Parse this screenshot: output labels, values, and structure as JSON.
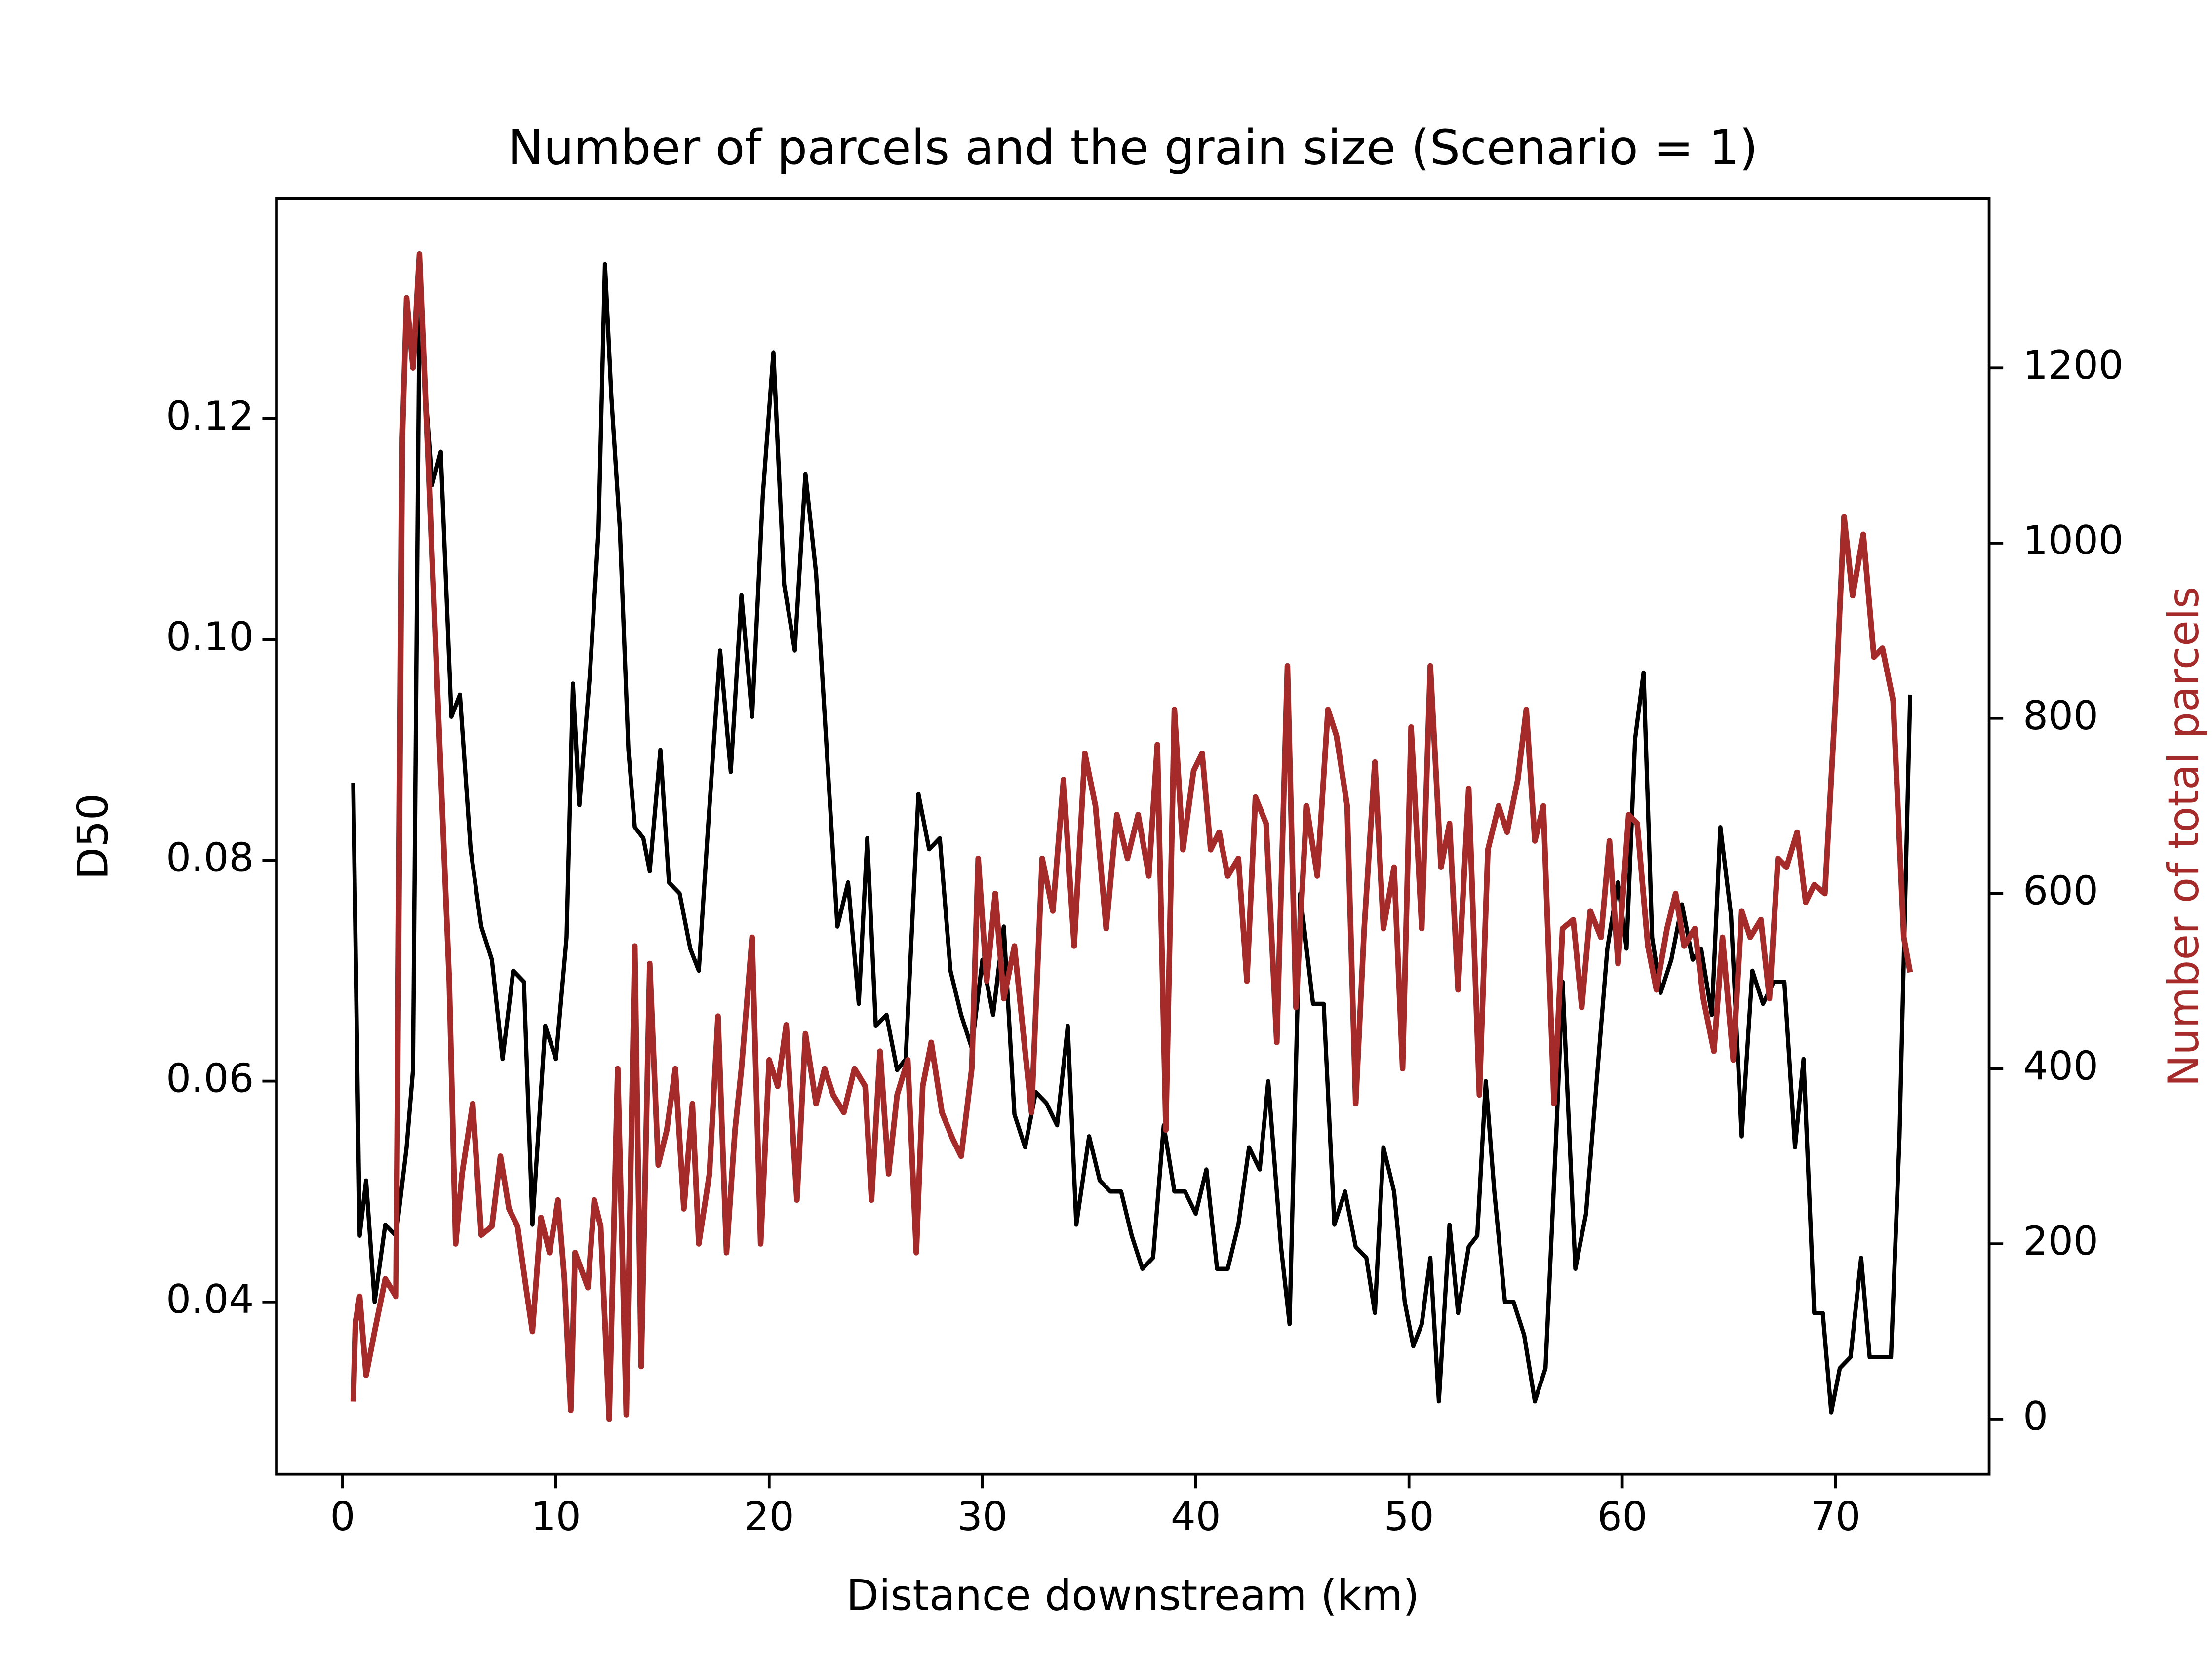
{
  "chart_data": {
    "type": "line",
    "title": "Number of parcels and the grain size (Scenario = 1)",
    "x_label": "Distance downstream (km)",
    "y_label": "D50",
    "y2_label": "Number of total parcels",
    "y2_label_color": "#a52a2a",
    "xlim": [
      -3.1,
      77.2
    ],
    "xticks": [
      0,
      10,
      20,
      30,
      40,
      50,
      60,
      70
    ],
    "ylim": [
      0.0244,
      0.1399
    ],
    "yticks": [
      0.04,
      0.06,
      0.08,
      {
        "value": 0.1,
        "label": "0.10"
      },
      0.12
    ],
    "y2lim": [
      -63,
      1393
    ],
    "y2ticks": [
      0,
      200,
      400,
      600,
      800,
      1000,
      1200
    ],
    "grid": false,
    "series": [
      {
        "color": "#000000",
        "axis": "y",
        "x": [
          0.5,
          0.8,
          1.1,
          1.5,
          2.0,
          2.5,
          3.0,
          3.3,
          3.6,
          4.2,
          4.6,
          5.1,
          5.5,
          6.0,
          6.5,
          7.0,
          7.5,
          8.0,
          8.5,
          8.9,
          9.5,
          10.0,
          10.5,
          10.8,
          11.1,
          11.6,
          12.0,
          12.3,
          12.6,
          13.0,
          13.4,
          13.7,
          14.1,
          14.4,
          14.9,
          15.3,
          15.8,
          16.3,
          16.7,
          17.1,
          17.7,
          18.2,
          18.7,
          19.2,
          19.7,
          20.2,
          20.7,
          21.2,
          21.7,
          22.2,
          22.7,
          23.2,
          23.7,
          24.2,
          24.6,
          25.0,
          25.5,
          26.0,
          26.4,
          27.0,
          27.5,
          28.0,
          28.5,
          29.0,
          29.5,
          30.0,
          30.5,
          31.0,
          31.5,
          32.0,
          32.5,
          33.0,
          33.5,
          34.0,
          34.4,
          35.0,
          35.5,
          36.0,
          36.5,
          37.0,
          37.5,
          38.0,
          38.5,
          39.0,
          39.5,
          40.0,
          40.5,
          41.0,
          41.5,
          42.0,
          42.5,
          43.0,
          43.4,
          44.0,
          44.4,
          44.9,
          45.5,
          46.0,
          46.5,
          47.0,
          47.5,
          48.0,
          48.4,
          48.8,
          49.3,
          49.8,
          50.2,
          50.6,
          51.0,
          51.4,
          51.9,
          52.3,
          52.8,
          53.2,
          53.6,
          54.0,
          54.5,
          54.9,
          55.4,
          55.9,
          56.4,
          56.9,
          57.2,
          57.8,
          58.3,
          58.8,
          59.3,
          59.8,
          60.2,
          60.6,
          61.0,
          61.4,
          61.8,
          62.3,
          62.8,
          63.3,
          63.7,
          64.2,
          64.6,
          65.1,
          65.6,
          66.1,
          66.6,
          67.1,
          67.6,
          68.1,
          68.5,
          69.0,
          69.4,
          69.8,
          70.2,
          70.7,
          71.2,
          71.6,
          72.1,
          72.6,
          73.0,
          73.5
        ],
        "values": [
          0.087,
          0.046,
          0.051,
          0.04,
          0.047,
          0.046,
          0.054,
          0.061,
          0.13,
          0.114,
          0.117,
          0.093,
          0.095,
          0.081,
          0.074,
          0.071,
          0.062,
          0.07,
          0.069,
          0.047,
          0.065,
          0.062,
          0.073,
          0.096,
          0.085,
          0.097,
          0.11,
          0.134,
          0.122,
          0.11,
          0.09,
          0.083,
          0.082,
          0.079,
          0.09,
          0.078,
          0.077,
          0.072,
          0.07,
          0.082,
          0.099,
          0.088,
          0.104,
          0.093,
          0.113,
          0.126,
          0.105,
          0.099,
          0.115,
          0.106,
          0.09,
          0.074,
          0.078,
          0.067,
          0.082,
          0.065,
          0.066,
          0.061,
          0.062,
          0.086,
          0.081,
          0.082,
          0.07,
          0.066,
          0.063,
          0.071,
          0.066,
          0.074,
          0.057,
          0.054,
          0.059,
          0.058,
          0.056,
          0.065,
          0.047,
          0.055,
          0.051,
          0.05,
          0.05,
          0.046,
          0.043,
          0.044,
          0.056,
          0.05,
          0.05,
          0.048,
          0.052,
          0.043,
          0.043,
          0.047,
          0.054,
          0.052,
          0.06,
          0.045,
          0.038,
          0.077,
          0.067,
          0.067,
          0.047,
          0.05,
          0.045,
          0.044,
          0.039,
          0.054,
          0.05,
          0.04,
          0.036,
          0.038,
          0.044,
          0.031,
          0.047,
          0.039,
          0.045,
          0.046,
          0.06,
          0.05,
          0.04,
          0.04,
          0.037,
          0.031,
          0.034,
          0.055,
          0.069,
          0.043,
          0.048,
          0.06,
          0.072,
          0.078,
          0.072,
          0.091,
          0.097,
          0.073,
          0.068,
          0.071,
          0.076,
          0.071,
          0.072,
          0.066,
          0.083,
          0.075,
          0.055,
          0.07,
          0.067,
          0.069,
          0.069,
          0.054,
          0.062,
          0.039,
          0.039,
          0.03,
          0.034,
          0.035,
          0.044,
          0.035,
          0.035,
          0.035,
          0.055,
          0.095
        ]
      },
      {
        "color": "#a52a2a",
        "axis": "y2",
        "x": [
          0.5,
          0.6,
          0.8,
          1.1,
          1.5,
          2.0,
          2.5,
          2.8,
          3.0,
          3.3,
          3.6,
          4.0,
          4.5,
          5.0,
          5.3,
          5.6,
          6.1,
          6.5,
          7.0,
          7.4,
          7.8,
          8.2,
          8.6,
          8.9,
          9.3,
          9.7,
          10.1,
          10.4,
          10.7,
          10.9,
          11.5,
          11.8,
          12.1,
          12.5,
          12.9,
          13.3,
          13.7,
          14.0,
          14.4,
          14.8,
          15.2,
          15.6,
          16.0,
          16.4,
          16.7,
          17.2,
          17.6,
          18.0,
          18.4,
          18.7,
          19.2,
          19.6,
          20.0,
          20.4,
          20.8,
          21.3,
          21.7,
          22.2,
          22.6,
          23.0,
          23.5,
          24.0,
          24.5,
          24.8,
          25.2,
          25.6,
          26.0,
          26.5,
          26.9,
          27.2,
          27.6,
          28.1,
          28.6,
          29.0,
          29.5,
          29.8,
          30.2,
          30.6,
          31.0,
          31.5,
          32.0,
          32.3,
          32.8,
          33.3,
          33.8,
          34.3,
          34.8,
          35.3,
          35.8,
          36.3,
          36.8,
          37.3,
          37.8,
          38.2,
          38.6,
          39.0,
          39.4,
          39.9,
          40.3,
          40.7,
          41.1,
          41.5,
          42.0,
          42.4,
          42.8,
          43.3,
          43.8,
          44.3,
          44.7,
          45.2,
          45.7,
          46.2,
          46.6,
          47.1,
          47.5,
          47.9,
          48.4,
          48.8,
          49.3,
          49.7,
          50.1,
          50.6,
          51.0,
          51.5,
          51.9,
          52.3,
          52.8,
          53.3,
          53.7,
          54.2,
          54.6,
          55.1,
          55.5,
          55.9,
          56.3,
          56.8,
          57.2,
          57.7,
          58.1,
          58.5,
          59.0,
          59.4,
          59.8,
          60.3,
          60.7,
          61.2,
          61.6,
          62.1,
          62.5,
          62.9,
          63.4,
          63.8,
          64.3,
          64.7,
          65.2,
          65.6,
          66.0,
          66.5,
          66.9,
          67.3,
          67.7,
          68.2,
          68.6,
          69.0,
          69.5,
          70.0,
          70.4,
          70.8,
          71.3,
          71.8,
          72.2,
          72.7,
          73.2,
          73.5
        ],
        "values": [
          20,
          110,
          140,
          50,
          100,
          160,
          140,
          1120,
          1280,
          1200,
          1330,
          1100,
          800,
          500,
          200,
          280,
          360,
          210,
          220,
          300,
          240,
          220,
          150,
          100,
          230,
          190,
          250,
          160,
          10,
          190,
          150,
          250,
          220,
          0,
          400,
          5,
          540,
          60,
          520,
          290,
          330,
          400,
          240,
          360,
          200,
          280,
          460,
          190,
          330,
          400,
          550,
          200,
          410,
          380,
          450,
          250,
          440,
          360,
          400,
          370,
          350,
          400,
          380,
          250,
          420,
          280,
          370,
          410,
          190,
          380,
          430,
          350,
          320,
          300,
          400,
          640,
          500,
          600,
          480,
          540,
          420,
          350,
          640,
          580,
          730,
          540,
          760,
          700,
          560,
          690,
          640,
          690,
          620,
          770,
          330,
          810,
          650,
          740,
          760,
          650,
          670,
          620,
          640,
          500,
          710,
          680,
          430,
          860,
          470,
          700,
          620,
          810,
          780,
          700,
          360,
          560,
          750,
          560,
          630,
          400,
          790,
          560,
          860,
          630,
          680,
          490,
          720,
          370,
          650,
          700,
          670,
          730,
          810,
          660,
          700,
          360,
          560,
          570,
          470,
          580,
          550,
          660,
          520,
          690,
          680,
          540,
          490,
          560,
          600,
          540,
          560,
          480,
          420,
          550,
          410,
          580,
          550,
          570,
          480,
          640,
          630,
          670,
          590,
          610,
          600,
          820,
          1030,
          940,
          1010,
          870,
          880,
          820,
          550,
          510
        ]
      }
    ]
  }
}
